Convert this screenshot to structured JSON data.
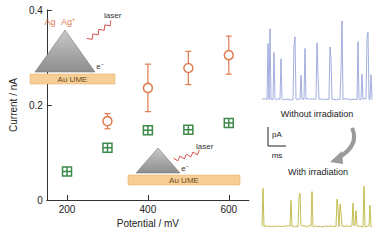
{
  "chart_data": {
    "type": "scatter",
    "xlabel": "Potential / mV",
    "ylabel": "Current / nA",
    "xlim": [
      150,
      650
    ],
    "ylim": [
      0,
      0.4
    ],
    "xticks": [
      200,
      400,
      600
    ],
    "yticks": [
      0,
      0.2,
      0.4
    ],
    "grid": false,
    "series": [
      {
        "color": "#e07b4f",
        "marker": "circle",
        "x": [
          300,
          400,
          500,
          600
        ],
        "values": [
          0.166,
          0.236,
          0.278,
          0.305
        ],
        "errors": [
          0.016,
          0.05,
          0.035,
          0.04
        ]
      },
      {
        "color": "#3d8a4a",
        "marker": "square_cross",
        "x": [
          200,
          300,
          400,
          500,
          600
        ],
        "values": [
          0.06,
          0.11,
          0.147,
          0.148,
          0.162
        ]
      }
    ],
    "insets": [
      {
        "ion": "Ag",
        "ion_plus": "Ag⁺",
        "light": "laser",
        "electron": "e⁻",
        "electrode": "Au UME"
      },
      {
        "light": "laser",
        "electron": "e⁻",
        "electrode": "Au UME"
      }
    ]
  },
  "traces": [
    {
      "label": "Without irradiation",
      "color": "#8c9bd6"
    },
    {
      "label": "With irradiation",
      "color": "#b5ad2a"
    }
  ],
  "scale_bar": {
    "y": "pA",
    "x": "ms"
  }
}
